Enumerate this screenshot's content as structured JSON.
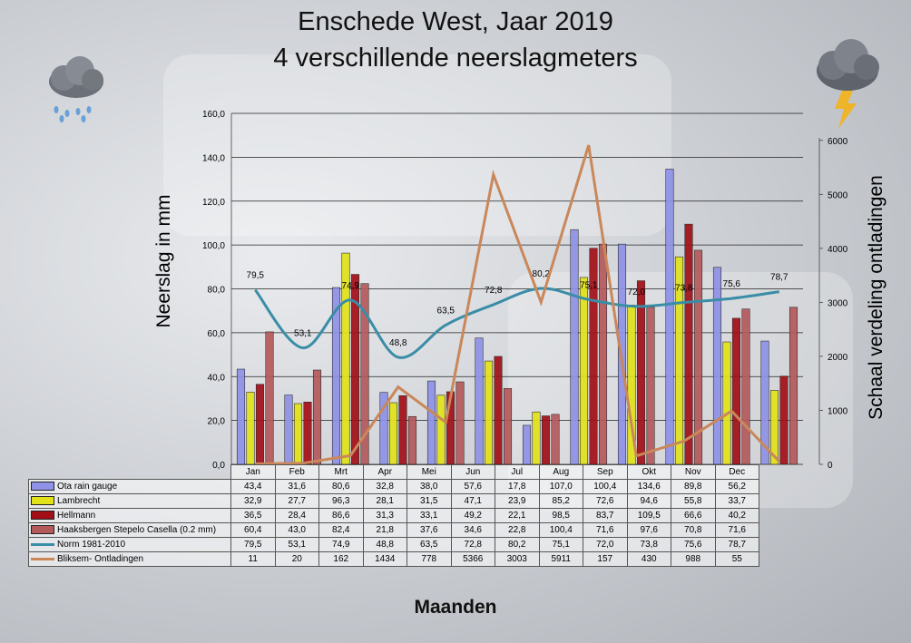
{
  "title_line1": "Enschede West, Jaar 2019",
  "title_line2": "4 verschillende neerslagmeters",
  "icons": {
    "left": "rain-cloud-icon",
    "right": "thunderstorm-icon"
  },
  "chart_data": {
    "type": "bar",
    "title": "Enschede West, Jaar 2019 — 4 verschillende neerslagmeters",
    "xlabel": "Maanden",
    "ylabel": "Neerslag in mm",
    "y2label": "Schaal  verdeling ontladingen",
    "ylim": [
      0,
      160
    ],
    "y_ticks": [
      "0,0",
      "20,0",
      "40,0",
      "60,0",
      "80,0",
      "100,0",
      "120,0",
      "140,0",
      "160,0"
    ],
    "y2lim": [
      0,
      6500
    ],
    "y2_ticks": [
      "0",
      "1000",
      "2000",
      "3000",
      "4000",
      "5000",
      "6000"
    ],
    "grid": true,
    "categories": [
      "Jan",
      "Feb",
      "Mrt",
      "Apr",
      "Mei",
      "Jun",
      "Jul",
      "Aug",
      "Sep",
      "Okt",
      "Nov",
      "Dec"
    ],
    "series": [
      {
        "name": "Ota rain gauge",
        "type": "bar",
        "color": "#8f92e6",
        "table": [
          "43,4",
          "31,6",
          "80,6",
          "32,8",
          "38,0",
          "57,6",
          "17,8",
          "107,0",
          "100,4",
          "134,6",
          "89,8",
          "56,2"
        ],
        "values": [
          43.4,
          31.6,
          80.6,
          32.8,
          38.0,
          57.6,
          17.8,
          107.0,
          100.4,
          134.6,
          89.8,
          56.2
        ]
      },
      {
        "name": "Lambrecht",
        "type": "bar",
        "color": "#e2e21a",
        "table": [
          "32,9",
          "27,7",
          "96,3",
          "28,1",
          "31,5",
          "47,1",
          "23,9",
          "85,2",
          "72,6",
          "94,6",
          "55,8",
          "33,7"
        ],
        "values": [
          32.9,
          27.7,
          96.3,
          28.1,
          31.5,
          47.1,
          23.9,
          85.2,
          72.6,
          94.6,
          55.8,
          33.7
        ]
      },
      {
        "name": "Hellmann",
        "type": "bar",
        "color": "#a30f17",
        "table": [
          "36,5",
          "28,4",
          "86,6",
          "31,3",
          "33,1",
          "49,2",
          "22,1",
          "98,5",
          "83,7",
          "109,5",
          "66,6",
          "40,2"
        ],
        "values": [
          36.5,
          28.4,
          86.6,
          31.3,
          33.1,
          49.2,
          22.1,
          98.5,
          83.7,
          109.5,
          66.6,
          40.2
        ]
      },
      {
        "name": "Haaksbergen Stepelo Casella (0.2 mm)",
        "type": "bar",
        "color": "#b55a5c",
        "table": [
          "60,4",
          "43,0",
          "82,4",
          "21,8",
          "37,6",
          "34,6",
          "22,8",
          "100,4",
          "71,6",
          "97,6",
          "70,8",
          "71,6"
        ],
        "values": [
          60.4,
          43.0,
          82.4,
          21.8,
          37.6,
          34.6,
          22.8,
          100.4,
          71.6,
          97.6,
          70.8,
          71.6
        ]
      },
      {
        "name": "Norm 1981-2010",
        "type": "line",
        "color": "#3a8da6",
        "table": [
          "79,5",
          "53,1",
          "74,9",
          "48,8",
          "63,5",
          "72,8",
          "80,2",
          "75,1",
          "72,0",
          "73,8",
          "75,6",
          "78,7"
        ],
        "values": [
          79.5,
          53.1,
          74.9,
          48.8,
          63.5,
          72.8,
          80.2,
          75.1,
          72.0,
          73.8,
          75.6,
          78.7
        ]
      },
      {
        "name": "Bliksem- Ontladingen",
        "type": "line",
        "axis": "right",
        "color": "#c9875a",
        "table": [
          "11",
          "20",
          "162",
          "1434",
          "778",
          "5366",
          "3003",
          "5911",
          "157",
          "430",
          "988",
          "55"
        ],
        "values": [
          11,
          20,
          162,
          1434,
          778,
          5366,
          3003,
          5911,
          157,
          430,
          988,
          55
        ]
      }
    ]
  }
}
